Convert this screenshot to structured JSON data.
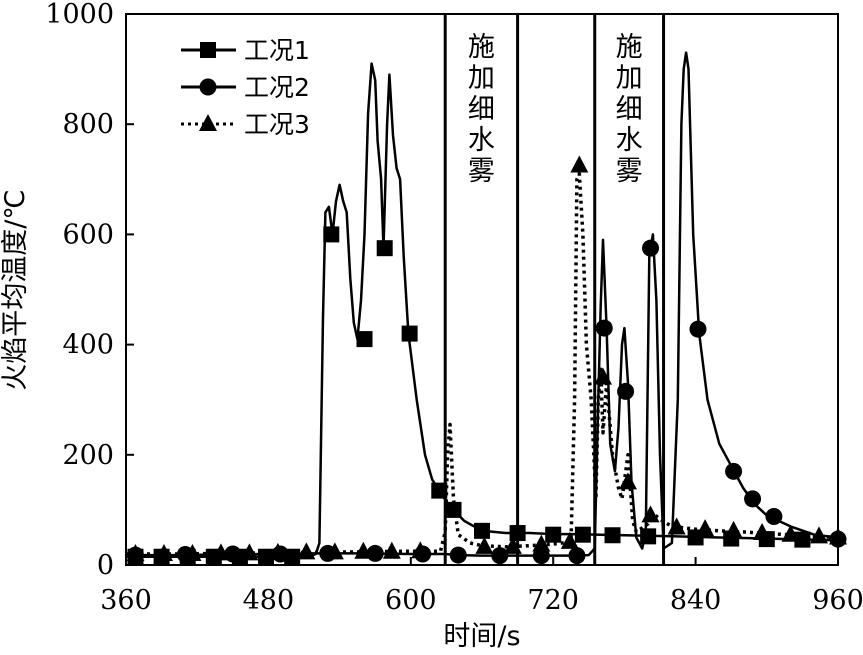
{
  "chart_data": {
    "type": "line",
    "xlabel": "时间/s",
    "ylabel": "火焰平均温度/℃",
    "xlim": [
      360,
      960
    ],
    "ylim": [
      0,
      1000
    ],
    "xticks": [
      360,
      480,
      600,
      720,
      840,
      960
    ],
    "yticks": [
      0,
      200,
      400,
      600,
      800,
      1000
    ],
    "legend_position": "top-left",
    "colors": {
      "line": "#000000",
      "background": "#ffffff"
    },
    "annotations": [
      {
        "text": "施加细水雾",
        "x_start": 629,
        "x_end": 690
      },
      {
        "text": "施加细水雾",
        "x_start": 755,
        "x_end": 813
      }
    ],
    "series": [
      {
        "name": "工况1",
        "marker": "square",
        "dash": "solid",
        "points": [
          [
            360,
            15
          ],
          [
            380,
            15
          ],
          [
            400,
            15
          ],
          [
            420,
            15
          ],
          [
            440,
            15
          ],
          [
            460,
            15
          ],
          [
            480,
            15
          ],
          [
            500,
            15
          ],
          [
            515,
            16
          ],
          [
            520,
            20
          ],
          [
            523,
            40
          ],
          [
            526,
            450
          ],
          [
            528,
            640
          ],
          [
            531,
            650
          ],
          [
            534,
            600
          ],
          [
            537,
            660
          ],
          [
            540,
            690
          ],
          [
            543,
            660
          ],
          [
            546,
            640
          ],
          [
            549,
            520
          ],
          [
            552,
            440
          ],
          [
            555,
            410
          ],
          [
            558,
            480
          ],
          [
            561,
            600
          ],
          [
            564,
            820
          ],
          [
            567,
            910
          ],
          [
            570,
            880
          ],
          [
            572,
            770
          ],
          [
            575,
            700
          ],
          [
            577,
            575
          ],
          [
            580,
            800
          ],
          [
            582,
            890
          ],
          [
            585,
            780
          ],
          [
            588,
            720
          ],
          [
            591,
            700
          ],
          [
            594,
            560
          ],
          [
            598,
            420
          ],
          [
            605,
            300
          ],
          [
            612,
            200
          ],
          [
            618,
            155
          ],
          [
            624,
            135
          ],
          [
            630,
            115
          ],
          [
            636,
            100
          ],
          [
            645,
            80
          ],
          [
            660,
            62
          ],
          [
            680,
            58
          ],
          [
            700,
            58
          ],
          [
            720,
            56
          ],
          [
            740,
            56
          ],
          [
            760,
            55
          ],
          [
            780,
            54
          ],
          [
            800,
            53
          ],
          [
            820,
            52
          ],
          [
            840,
            51
          ],
          [
            860,
            50
          ],
          [
            880,
            49
          ],
          [
            900,
            48
          ],
          [
            920,
            47
          ],
          [
            940,
            46
          ],
          [
            960,
            45
          ]
        ],
        "markers": [
          [
            368,
            15
          ],
          [
            390,
            15
          ],
          [
            412,
            15
          ],
          [
            434,
            15
          ],
          [
            456,
            15
          ],
          [
            478,
            15
          ],
          [
            500,
            15
          ],
          [
            533,
            600
          ],
          [
            561,
            410
          ],
          [
            578,
            575
          ],
          [
            599,
            420
          ],
          [
            624,
            135
          ],
          [
            636,
            100
          ],
          [
            660,
            62
          ],
          [
            690,
            58
          ],
          [
            720,
            55
          ],
          [
            745,
            55
          ],
          [
            770,
            54
          ],
          [
            800,
            52
          ],
          [
            840,
            50
          ],
          [
            870,
            48
          ],
          [
            900,
            47
          ],
          [
            930,
            46
          ]
        ]
      },
      {
        "name": "工况2",
        "marker": "circle",
        "dash": "solid",
        "points": [
          [
            360,
            18
          ],
          [
            400,
            18
          ],
          [
            440,
            19
          ],
          [
            480,
            20
          ],
          [
            520,
            21
          ],
          [
            560,
            21
          ],
          [
            600,
            20
          ],
          [
            629,
            20
          ],
          [
            640,
            18
          ],
          [
            660,
            17
          ],
          [
            680,
            17
          ],
          [
            700,
            17
          ],
          [
            720,
            17
          ],
          [
            740,
            17
          ],
          [
            750,
            18
          ],
          [
            755,
            30
          ],
          [
            758,
            300
          ],
          [
            760,
            470
          ],
          [
            762,
            590
          ],
          [
            765,
            430
          ],
          [
            768,
            220
          ],
          [
            772,
            170
          ],
          [
            775,
            250
          ],
          [
            778,
            400
          ],
          [
            780,
            430
          ],
          [
            783,
            330
          ],
          [
            786,
            150
          ],
          [
            790,
            50
          ],
          [
            795,
            30
          ],
          [
            798,
            60
          ],
          [
            801,
            560
          ],
          [
            804,
            600
          ],
          [
            807,
            480
          ],
          [
            810,
            200
          ],
          [
            813,
            30
          ],
          [
            820,
            40
          ],
          [
            825,
            300
          ],
          [
            828,
            800
          ],
          [
            830,
            900
          ],
          [
            832,
            930
          ],
          [
            834,
            900
          ],
          [
            838,
            600
          ],
          [
            843,
            420
          ],
          [
            850,
            300
          ],
          [
            860,
            220
          ],
          [
            870,
            180
          ],
          [
            880,
            140
          ],
          [
            890,
            110
          ],
          [
            900,
            90
          ],
          [
            920,
            70
          ],
          [
            940,
            55
          ],
          [
            960,
            50
          ]
        ],
        "markers": [
          [
            368,
            18
          ],
          [
            410,
            19
          ],
          [
            450,
            20
          ],
          [
            490,
            20
          ],
          [
            530,
            21
          ],
          [
            570,
            21
          ],
          [
            610,
            20
          ],
          [
            640,
            18
          ],
          [
            675,
            17
          ],
          [
            710,
            17
          ],
          [
            740,
            17
          ],
          [
            763,
            430
          ],
          [
            781,
            315
          ],
          [
            802,
            575
          ],
          [
            842,
            428
          ],
          [
            872,
            170
          ],
          [
            888,
            120
          ],
          [
            906,
            88
          ],
          [
            960,
            47
          ]
        ]
      },
      {
        "name": "工况3",
        "marker": "triangle",
        "dash": "dotted",
        "points": [
          [
            360,
            20
          ],
          [
            400,
            20
          ],
          [
            440,
            21
          ],
          [
            480,
            22
          ],
          [
            520,
            23
          ],
          [
            560,
            24
          ],
          [
            600,
            25
          ],
          [
            625,
            25
          ],
          [
            629,
            60
          ],
          [
            631,
            200
          ],
          [
            633,
            255
          ],
          [
            636,
            120
          ],
          [
            640,
            55
          ],
          [
            650,
            40
          ],
          [
            660,
            35
          ],
          [
            680,
            33
          ],
          [
            700,
            35
          ],
          [
            720,
            38
          ],
          [
            735,
            42
          ],
          [
            738,
            300
          ],
          [
            740,
            700
          ],
          [
            742,
            710
          ],
          [
            745,
            600
          ],
          [
            748,
            400
          ],
          [
            752,
            300
          ],
          [
            756,
            120
          ],
          [
            758,
            300
          ],
          [
            760,
            360
          ],
          [
            762,
            240
          ],
          [
            765,
            330
          ],
          [
            770,
            200
          ],
          [
            775,
            140
          ],
          [
            778,
            120
          ],
          [
            783,
            200
          ],
          [
            787,
            80
          ],
          [
            790,
            60
          ],
          [
            800,
            75
          ],
          [
            806,
            90
          ],
          [
            812,
            80
          ],
          [
            820,
            70
          ],
          [
            840,
            65
          ],
          [
            860,
            62
          ],
          [
            880,
            60
          ],
          [
            900,
            57
          ],
          [
            920,
            55
          ],
          [
            940,
            52
          ],
          [
            960,
            50
          ]
        ],
        "markers": [
          [
            368,
            20
          ],
          [
            392,
            20
          ],
          [
            416,
            20
          ],
          [
            440,
            21
          ],
          [
            464,
            21
          ],
          [
            488,
            22
          ],
          [
            512,
            23
          ],
          [
            536,
            23
          ],
          [
            560,
            24
          ],
          [
            584,
            24
          ],
          [
            608,
            25
          ],
          [
            662,
            33
          ],
          [
            686,
            33
          ],
          [
            710,
            37
          ],
          [
            734,
            42
          ],
          [
            742,
            725
          ],
          [
            762,
            340
          ],
          [
            783,
            150
          ],
          [
            802,
            90
          ],
          [
            824,
            68
          ],
          [
            848,
            65
          ],
          [
            872,
            62
          ],
          [
            896,
            58
          ],
          [
            920,
            55
          ],
          [
            944,
            52
          ],
          [
            960,
            50
          ]
        ]
      }
    ]
  }
}
